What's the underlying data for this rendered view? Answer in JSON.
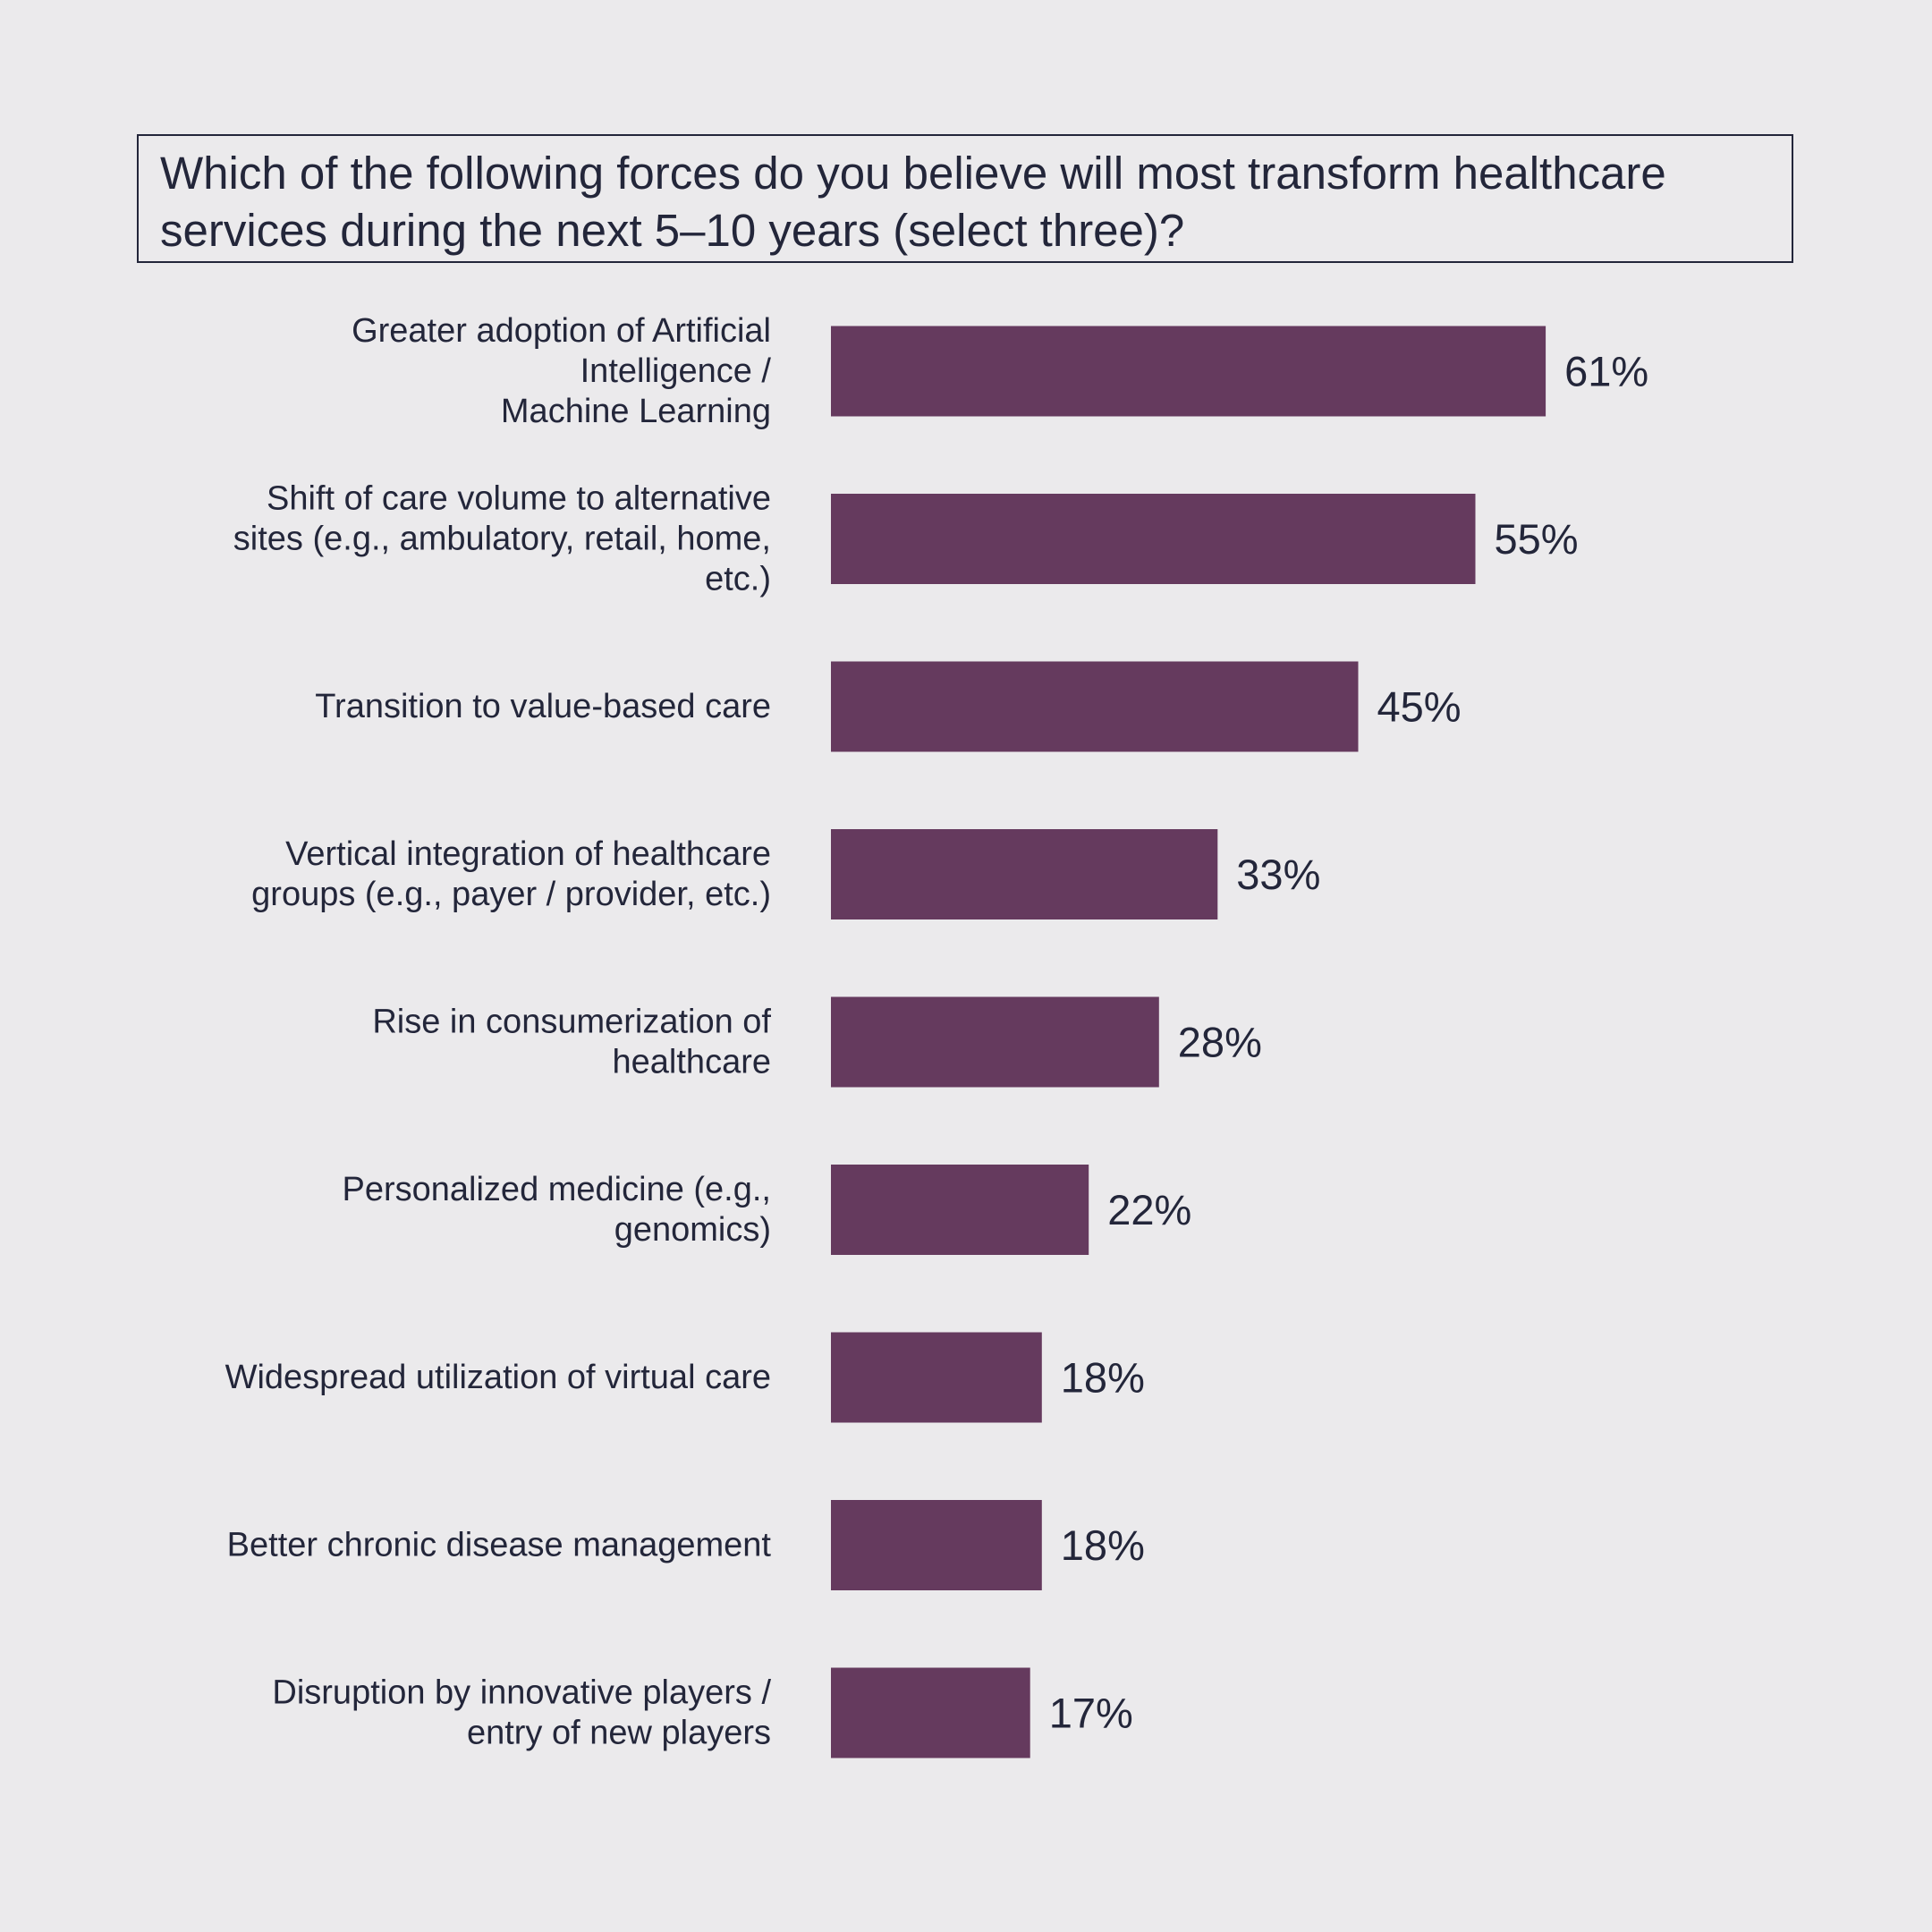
{
  "chart_data": {
    "type": "bar",
    "orientation": "horizontal",
    "title_lines": [
      "Which of the following forces do you believe will most transform healthcare",
      "services during the next 5–10 years (select three)?"
    ],
    "categories": [
      [
        "Greater adoption of Artificial",
        "Intelligence /",
        "Machine Learning"
      ],
      [
        "Shift of care volume to alternative",
        "sites (e.g., ambulatory, retail, home,",
        "etc.)"
      ],
      [
        "Transition to value-based care"
      ],
      [
        "Vertical integration of healthcare",
        "groups (e.g., payer / provider, etc.)"
      ],
      [
        "Rise in consumerization of",
        "healthcare"
      ],
      [
        "Personalized medicine (e.g.,",
        "genomics)"
      ],
      [
        "Widespread utilization of virtual care"
      ],
      [
        "Better chronic disease management"
      ],
      [
        "Disruption by innovative players /",
        "entry of new players"
      ]
    ],
    "values": [
      61,
      55,
      45,
      33,
      28,
      22,
      18,
      18,
      17
    ],
    "value_labels": [
      "61%",
      "55%",
      "45%",
      "33%",
      "28%",
      "22%",
      "18%",
      "18%",
      "17%"
    ],
    "unit": "%",
    "xlim": [
      0,
      100
    ],
    "grid": false,
    "legend": "none",
    "bar_color": "#653a5e",
    "text_color": "#23263a",
    "background": "#ebeaec"
  }
}
